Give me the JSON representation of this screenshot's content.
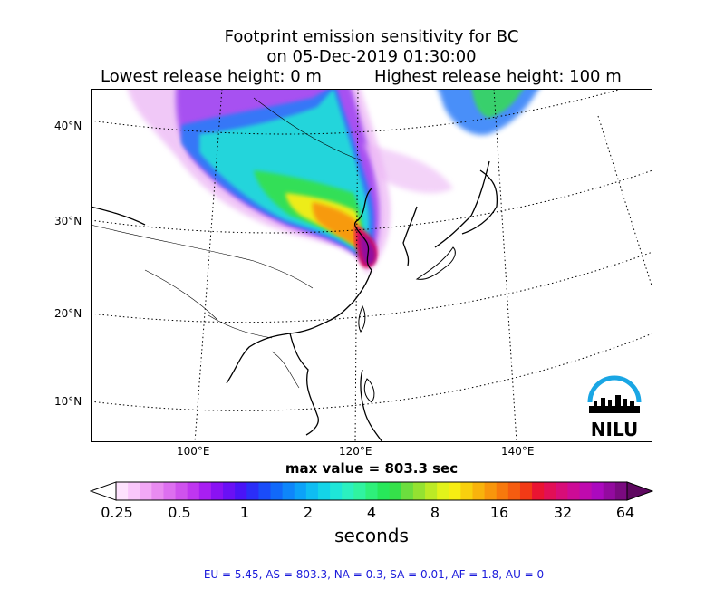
{
  "title": {
    "line1": "Footprint emission sensitivity for BC",
    "line2": "on 05-Dec-2019 01:30:00",
    "release_low": "Lowest release height: 0 m",
    "release_high": "Highest release height: 100 m"
  },
  "chart_data": {
    "type": "heatmap",
    "title": "Footprint emission sensitivity for BC",
    "lat_ticks": [
      "40°N",
      "30°N",
      "20°N",
      "10°N"
    ],
    "lon_ticks": [
      "100°E",
      "120°E",
      "140°E"
    ],
    "colorbar": {
      "labels": [
        "0.25",
        "0.5",
        "1",
        "2",
        "4",
        "8",
        "16",
        "32",
        "64"
      ],
      "units": "seconds",
      "scale": "log",
      "colors": [
        "#ffffff",
        "#fde2fd",
        "#f9c7fb",
        "#f3a8f6",
        "#e98bf1",
        "#dd6ff0",
        "#cf52ee",
        "#bf36f0",
        "#a81ff2",
        "#8a12f3",
        "#6a10f5",
        "#4a14f7",
        "#2b2ef8",
        "#1a4cf9",
        "#1169fa",
        "#0e86fa",
        "#0ca2f8",
        "#0fbdf2",
        "#14d4e8",
        "#1ee6d8",
        "#2bf0c0",
        "#30f3a0",
        "#2ef07a",
        "#27e85a",
        "#35e14a",
        "#6cde3e",
        "#94e231",
        "#bcea25",
        "#e2f21a",
        "#f7ed12",
        "#f8d00e",
        "#f8b30c",
        "#f8960c",
        "#f7790d",
        "#f55c10",
        "#f23a16",
        "#ea1432",
        "#e20f56",
        "#d80d78",
        "#cd0b96",
        "#bf0aae",
        "#ab09be",
        "#930a9f",
        "#7a0a80",
        "#5e0860"
      ]
    },
    "max_value": "max value = 803.3 sec",
    "stats": "EU = 5.45,  AS = 803.3,  NA = 0.3,  SA = 0.01,  AF = 1.8,  AU = 0"
  },
  "logo": {
    "text": "NILU",
    "arc_color": "#1aa6e4"
  }
}
